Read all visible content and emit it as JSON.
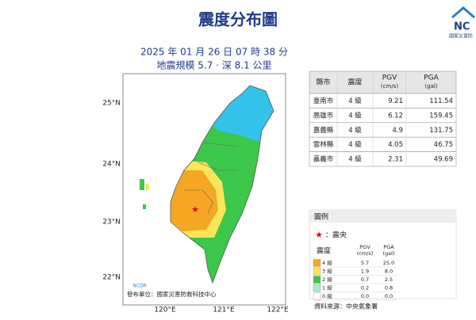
{
  "header": {
    "title": "震度分布圖",
    "logo": "NC",
    "logo_sub": "國家災害防",
    "time": "2025 年 01 月 26 日 07 時 38 分",
    "info": "地震規模 5.7 · 深 8.1 公里"
  },
  "map": {
    "lat_labels": [
      "25°N",
      "24°N",
      "23°N",
      "22°N"
    ],
    "lon_labels": [
      "120°E",
      "121°E",
      "122°E"
    ],
    "publisher": "發布單位：國家災害防救科技中心",
    "logo": "NCDR"
  },
  "table": {
    "columns": [
      [
        "縣市"
      ],
      [
        "震度"
      ],
      [
        "PGV",
        "(cm/s)"
      ],
      [
        "PGA",
        "(gal)"
      ]
    ],
    "rows": [
      [
        "臺南市",
        "4 級",
        "9.21",
        "111.54"
      ],
      [
        "高雄市",
        "4 級",
        "6.12",
        "159.45"
      ],
      [
        "嘉義縣",
        "4 級",
        "4.9",
        "131.75"
      ],
      [
        "雲林縣",
        "4 級",
        "4.05",
        "46.75"
      ],
      [
        "嘉義市",
        "4 級",
        "2.31",
        "49.69"
      ]
    ]
  },
  "legend": {
    "title": "圖例",
    "epicenter": "：震央",
    "columns": [
      [
        "震度"
      ],
      [
        "PGV",
        "(cm/s)"
      ],
      [
        "PGA",
        "(gal)"
      ]
    ],
    "rows": [
      {
        "level": "4 級",
        "pgv": "5.7",
        "pga": "25.0",
        "color": "#f5a623"
      },
      {
        "level": "3 級",
        "pgv": "1.9",
        "pga": "8.0",
        "color": "#fbe55a"
      },
      {
        "level": "2 級",
        "pgv": "0.7",
        "pga": "2.5",
        "color": "#3cc64a"
      },
      {
        "level": "1 級",
        "pgv": "0.2",
        "pga": "0.8",
        "color": "#a8e9d0"
      },
      {
        "level": "0 級",
        "pgv": "0.0",
        "pga": "0.0",
        "color": "#ffffff"
      }
    ]
  },
  "source": "資料來源：中央氣象署"
}
